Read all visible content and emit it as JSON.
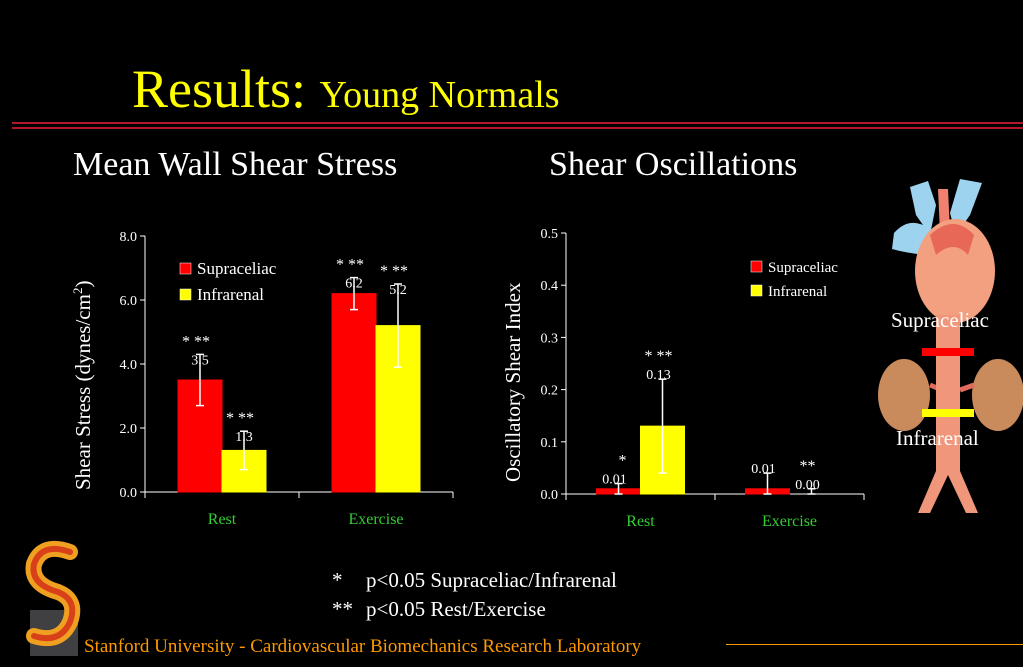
{
  "slide": {
    "title": "Results:",
    "subtitle": "Young Normals",
    "footer": "Stanford University - Cardiovascular Biomechanics Research Laboratory"
  },
  "colors": {
    "title": "#ffff00",
    "rule": "#b3182a",
    "supraceliac": "#ff0000",
    "infrarenal": "#ffff00",
    "category_label": "#33cc33",
    "footer": "#ff9900"
  },
  "anatomy": {
    "label_top": "Supraceliac",
    "label_bottom": "Infrarenal"
  },
  "notes": [
    {
      "symbol": "*",
      "text": "p<0.05 Supraceliac/Infrarenal"
    },
    {
      "symbol": "**",
      "text": "p<0.05 Rest/Exercise"
    }
  ],
  "chart_data": [
    {
      "type": "bar",
      "title": "Mean Wall Shear Stress",
      "ylabel": "Shear Stress (dynes/cm",
      "ylabel_sup": "2",
      "ylabel_close": ")",
      "ylim": [
        0,
        8
      ],
      "yticks": [
        "0.0",
        "2.0",
        "4.0",
        "6.0",
        "8.0"
      ],
      "ytick_values": [
        0,
        2,
        4,
        6,
        8
      ],
      "categories": [
        "Rest",
        "Exercise"
      ],
      "legend_position": "top-left",
      "series": [
        {
          "name": "Supraceliac",
          "values": [
            3.5,
            6.2
          ],
          "labels": [
            "3.5",
            "6.2"
          ],
          "errors": [
            0.8,
            0.5
          ],
          "sig": [
            "*   **",
            "*   **"
          ]
        },
        {
          "name": "Infrarenal",
          "values": [
            1.3,
            5.2
          ],
          "labels": [
            "1.3",
            "5.2"
          ],
          "errors": [
            0.6,
            1.3
          ],
          "sig": [
            "*   **",
            "*   **"
          ]
        }
      ]
    },
    {
      "type": "bar",
      "title": "Shear Oscillations",
      "ylabel": "Oscillatory Shear Index",
      "ylim": [
        0,
        0.5
      ],
      "yticks": [
        "0.0",
        "0.1",
        "0.2",
        "0.3",
        "0.4",
        "0.5"
      ],
      "ytick_values": [
        0,
        0.1,
        0.2,
        0.3,
        0.4,
        0.5
      ],
      "categories": [
        "Rest",
        "Exercise"
      ],
      "legend_position": "top-right",
      "series": [
        {
          "name": "Supraceliac",
          "values": [
            0.01,
            0.01
          ],
          "labels": [
            "0.01",
            "0.01"
          ],
          "errors": [
            0.01,
            0.03
          ],
          "sig": [
            "",
            ""
          ]
        },
        {
          "name": "Infrarenal",
          "values": [
            0.13,
            0.0
          ],
          "labels": [
            "0.13",
            "0.00"
          ],
          "errors": [
            0.09,
            0.01
          ],
          "sig": [
            "*   **",
            "**"
          ]
        }
      ],
      "extra_marks": [
        {
          "category": 0,
          "series": 0,
          "text": "*"
        }
      ]
    }
  ]
}
